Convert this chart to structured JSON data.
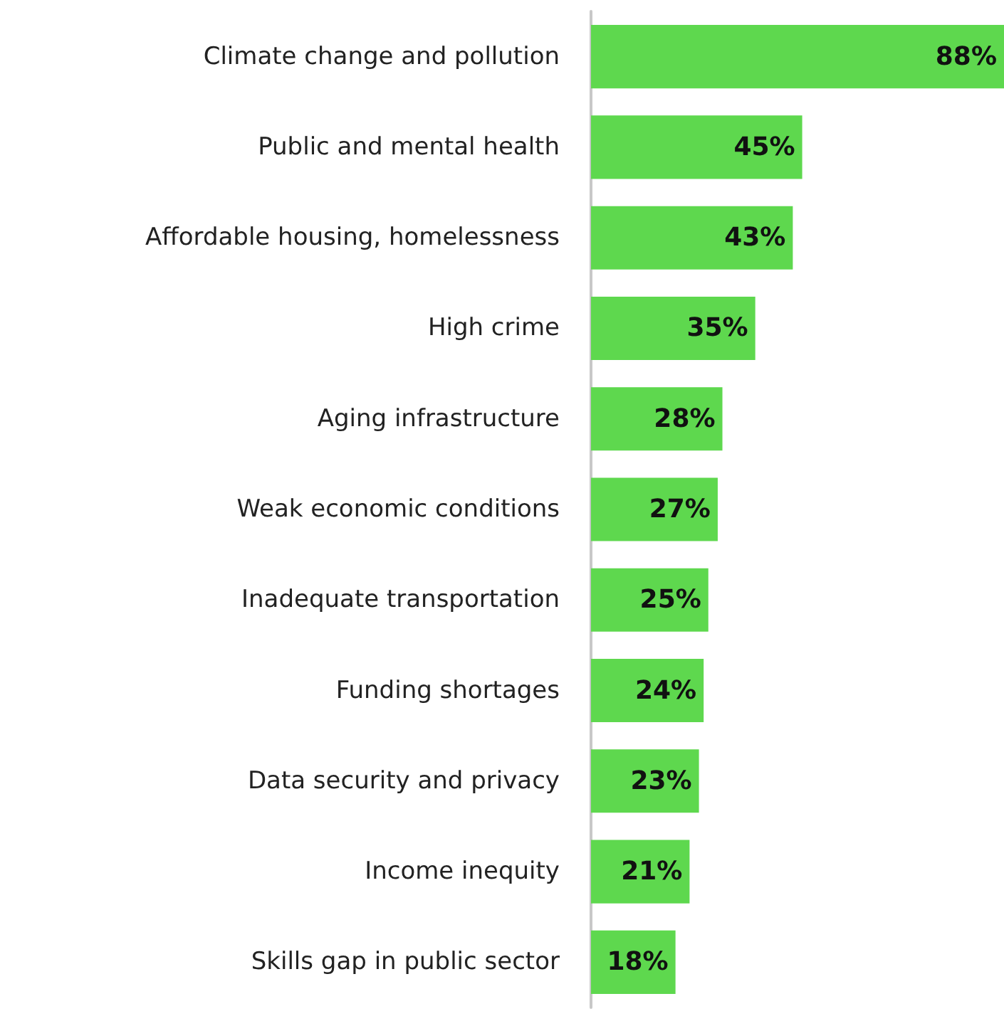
{
  "chart_data": {
    "type": "bar",
    "orientation": "horizontal",
    "categories": [
      "Climate change and pollution",
      "Public and mental health",
      "Affordable housing, homelessness",
      "High crime",
      "Aging infrastructure",
      "Weak economic conditions",
      "Inadequate transportation",
      "Funding shortages",
      "Data security and privacy",
      "Income inequity",
      "Skills gap in public sector"
    ],
    "values": [
      88,
      45,
      43,
      35,
      28,
      27,
      25,
      24,
      23,
      21,
      18
    ],
    "value_labels": [
      "88%",
      "45%",
      "43%",
      "35%",
      "28%",
      "27%",
      "25%",
      "24%",
      "23%",
      "21%",
      "18%"
    ],
    "color": "#5ed84e"
  }
}
